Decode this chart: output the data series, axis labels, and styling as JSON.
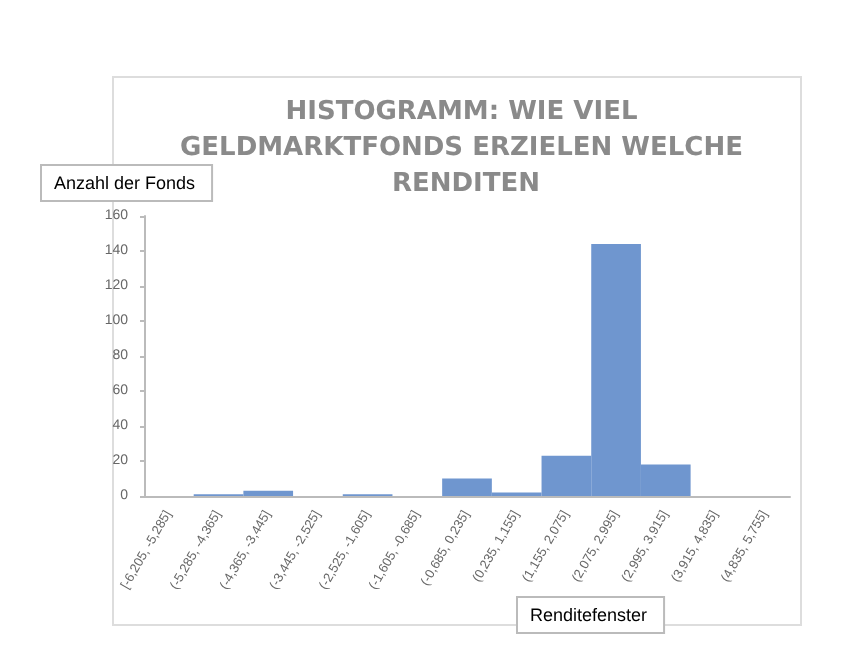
{
  "chart_data": {
    "type": "bar",
    "title": "HISTOGRAMM: WIE VIEL GELDMARKTFONDS ERZIELEN WELCHE RENDITEN",
    "xlabel": "Renditefenster",
    "ylabel": "Anzahl der Fonds",
    "categories": [
      "[-6,205, -5,285]",
      "(-5,285, -4,365]",
      "(-4,365, -3,445]",
      "(-3,445, -2,525]",
      "(-2,525, -1,605]",
      "(-1,605, -0,685]",
      "(-0,685, 0,235]",
      "(0,235, 1,155]",
      "(1,155, 2,075]",
      "(2,075, 2,995]",
      "(2,995, 3,915]",
      "(3,915, 4,835]",
      "(4,835, 5,755]"
    ],
    "values": [
      0,
      1,
      3,
      0,
      1,
      0,
      10,
      2,
      23,
      144,
      18,
      0,
      0
    ],
    "color": "#6f96cf",
    "ylim": [
      0,
      160
    ],
    "yticks": [
      0,
      20,
      40,
      60,
      80,
      100,
      120,
      140,
      160
    ],
    "grid": false
  }
}
